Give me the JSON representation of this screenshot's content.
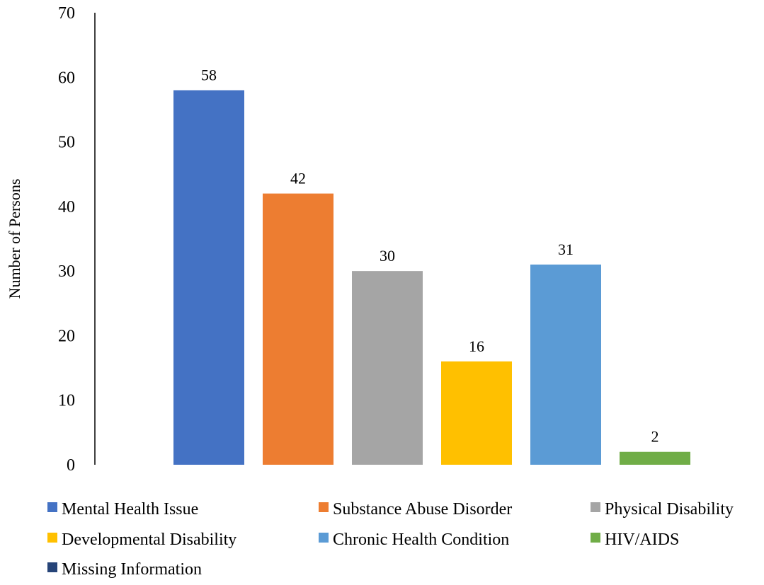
{
  "chart_data": {
    "type": "bar",
    "title": "",
    "xlabel": "",
    "ylabel": "Number of Persons",
    "ylim": [
      0,
      70
    ],
    "y_ticks": [
      0,
      10,
      20,
      30,
      40,
      50,
      60,
      70
    ],
    "grid": false,
    "legend_position": "bottom",
    "categories": [
      "Mental Health Issue",
      "Substance Abuse Disorder",
      "Physical Disability",
      "Developmental Disability",
      "Chronic Health Condition",
      "HIV/AIDS",
      "Missing Information"
    ],
    "values": [
      58,
      42,
      30,
      16,
      31,
      2,
      null
    ],
    "data_labels": [
      "58",
      "42",
      "30",
      "16",
      "31",
      "2",
      ""
    ],
    "colors": [
      "#4472C4",
      "#ED7D31",
      "#A5A5A5",
      "#FFC000",
      "#5B9BD5",
      "#70AD47",
      "#264478"
    ]
  }
}
